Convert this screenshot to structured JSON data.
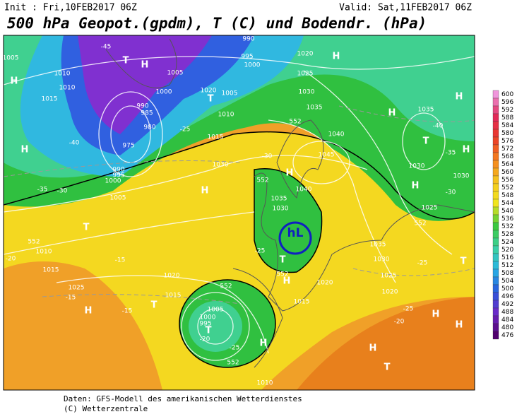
{
  "header": {
    "init": "Init : Fri,10FEB2017 06Z",
    "valid": "Valid: Sat,11FEB2017 06Z",
    "title": "500 hPa Geopot.(gpdm), T (C) und Bodendr. (hPa)"
  },
  "legend": {
    "levels": [
      600,
      596,
      592,
      588,
      584,
      580,
      576,
      572,
      568,
      564,
      560,
      556,
      552,
      548,
      544,
      540,
      536,
      532,
      528,
      524,
      520,
      516,
      512,
      508,
      504,
      500,
      496,
      492,
      488,
      484,
      480,
      476
    ]
  },
  "map": {
    "labels": [
      "1005",
      "1010",
      "1010",
      "1015",
      "H",
      "H",
      "T",
      "H",
      "990",
      "995",
      "1000",
      "1005",
      "1000",
      "990",
      "985",
      "980",
      "975",
      "990",
      "995",
      "1000",
      "T",
      "1020",
      "1005",
      "1010",
      "1015",
      "1030",
      "1020",
      "1025",
      "1030",
      "1035",
      "1040",
      "1045",
      "1040",
      "1035",
      "1030",
      "H",
      "H",
      "H",
      "1035",
      "T",
      "H",
      "1030",
      "1030",
      "H",
      "1025",
      "H",
      "H",
      "1005",
      "T",
      "1010",
      "1015",
      "1020",
      "1025",
      "H",
      "T",
      "1015",
      "1005",
      "1000",
      "995",
      "T",
      "H",
      "1015",
      "1020",
      "H",
      "T",
      "1035",
      "1030",
      "1025",
      "1020",
      "T",
      "H",
      "H",
      "H",
      "T",
      "1010",
      "hL",
      "552",
      "552",
      "552",
      "552",
      "552",
      "552",
      "552",
      "-45",
      "-40",
      "-35",
      "-30",
      "-25",
      "-30",
      "-25",
      "-20",
      "-15",
      "-15",
      "-15",
      "-20",
      "-25",
      "-20",
      "-25",
      "-25",
      "-40",
      "-35",
      "-30"
    ]
  },
  "footer": {
    "lines": [
      "Daten: GFS-Modell des amerikanischen Wetterdienstes",
      "(C) Wetterzentrale"
    ]
  }
}
